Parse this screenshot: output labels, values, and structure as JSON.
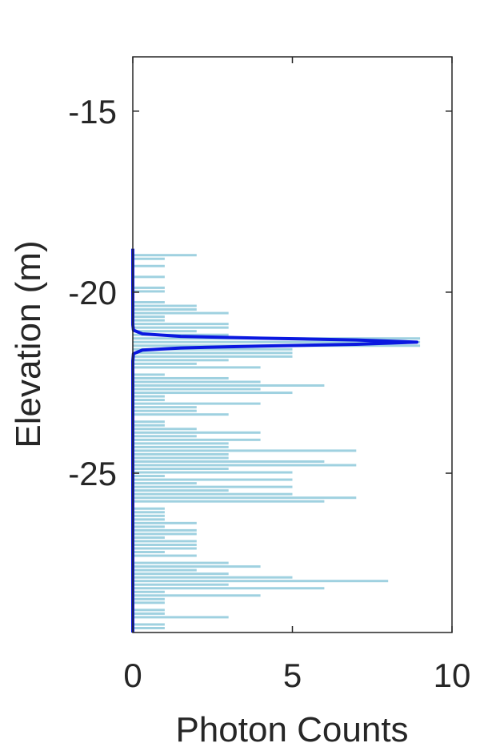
{
  "chart_data": {
    "type": "bar",
    "orientation": "horizontal",
    "title": "",
    "xlabel": "Photon Counts",
    "ylabel": "Elevation (m)",
    "xlim": [
      0,
      10
    ],
    "ylim": [
      -29.4,
      -13.5
    ],
    "xticks": [
      0,
      5,
      10
    ],
    "xtick_labels": [
      "0",
      "5",
      "10"
    ],
    "yticks": [
      -15,
      -20,
      -25
    ],
    "ytick_labels": [
      "-15",
      "-20",
      "-25"
    ],
    "grid": false,
    "legend": "none",
    "colors": {
      "bars": "#9fd1e0",
      "fit_line": "#0a18e0",
      "axes": "#262626"
    },
    "series": [
      {
        "kind": "histogram",
        "bin_height": 0.11,
        "bars": [
          [
            -19.0,
            2
          ],
          [
            -19.1,
            1
          ],
          [
            -19.3,
            1
          ],
          [
            -19.6,
            1
          ],
          [
            -19.9,
            1
          ],
          [
            -20.0,
            1
          ],
          [
            -20.3,
            1
          ],
          [
            -20.4,
            2
          ],
          [
            -20.5,
            2
          ],
          [
            -20.6,
            3
          ],
          [
            -20.7,
            1
          ],
          [
            -20.8,
            1
          ],
          [
            -20.9,
            3
          ],
          [
            -21.0,
            3
          ],
          [
            -21.1,
            2
          ],
          [
            -21.2,
            3
          ],
          [
            -21.3,
            9
          ],
          [
            -21.4,
            9
          ],
          [
            -21.5,
            9
          ],
          [
            -21.6,
            5
          ],
          [
            -21.7,
            5
          ],
          [
            -21.8,
            5
          ],
          [
            -21.9,
            3
          ],
          [
            -22.0,
            2
          ],
          [
            -22.1,
            4
          ],
          [
            -22.3,
            1
          ],
          [
            -22.4,
            3
          ],
          [
            -22.5,
            4
          ],
          [
            -22.6,
            6
          ],
          [
            -22.7,
            4
          ],
          [
            -22.8,
            5
          ],
          [
            -22.9,
            1
          ],
          [
            -23.0,
            1
          ],
          [
            -23.1,
            4
          ],
          [
            -23.2,
            2
          ],
          [
            -23.3,
            2
          ],
          [
            -23.4,
            3
          ],
          [
            -23.6,
            1
          ],
          [
            -23.7,
            1
          ],
          [
            -23.8,
            2
          ],
          [
            -23.9,
            4
          ],
          [
            -24.0,
            2
          ],
          [
            -24.1,
            4
          ],
          [
            -24.2,
            3
          ],
          [
            -24.3,
            3
          ],
          [
            -24.4,
            7
          ],
          [
            -24.5,
            3
          ],
          [
            -24.6,
            3
          ],
          [
            -24.7,
            6
          ],
          [
            -24.8,
            7
          ],
          [
            -24.9,
            3
          ],
          [
            -25.0,
            5
          ],
          [
            -25.1,
            1
          ],
          [
            -25.2,
            5
          ],
          [
            -25.3,
            2
          ],
          [
            -25.4,
            5
          ],
          [
            -25.5,
            3
          ],
          [
            -25.6,
            5
          ],
          [
            -25.7,
            7
          ],
          [
            -25.8,
            6
          ],
          [
            -26.0,
            1
          ],
          [
            -26.1,
            1
          ],
          [
            -26.2,
            1
          ],
          [
            -26.3,
            1
          ],
          [
            -26.4,
            2
          ],
          [
            -26.5,
            1
          ],
          [
            -26.6,
            2
          ],
          [
            -26.7,
            2
          ],
          [
            -26.8,
            1
          ],
          [
            -26.9,
            2
          ],
          [
            -27.0,
            2
          ],
          [
            -27.1,
            2
          ],
          [
            -27.2,
            1
          ],
          [
            -27.3,
            2
          ],
          [
            -27.5,
            3
          ],
          [
            -27.6,
            4
          ],
          [
            -27.7,
            2
          ],
          [
            -27.8,
            3
          ],
          [
            -27.9,
            5
          ],
          [
            -28.0,
            8
          ],
          [
            -28.1,
            3
          ],
          [
            -28.2,
            6
          ],
          [
            -28.3,
            1
          ],
          [
            -28.4,
            4
          ],
          [
            -28.5,
            1
          ],
          [
            -28.6,
            1
          ],
          [
            -28.8,
            1
          ],
          [
            -28.9,
            1
          ],
          [
            -29.0,
            3
          ],
          [
            -29.2,
            1
          ],
          [
            -29.3,
            1
          ]
        ]
      },
      {
        "kind": "line",
        "points": [
          [
            0,
            -18.8
          ],
          [
            0,
            -19.5
          ],
          [
            0,
            -20.5
          ],
          [
            0.0,
            -20.9
          ],
          [
            0.02,
            -21.05
          ],
          [
            0.3,
            -21.15
          ],
          [
            1.5,
            -21.22
          ],
          [
            4.0,
            -21.27
          ],
          [
            7.0,
            -21.32
          ],
          [
            8.9,
            -21.38
          ],
          [
            7.0,
            -21.44
          ],
          [
            4.0,
            -21.49
          ],
          [
            1.5,
            -21.54
          ],
          [
            0.3,
            -21.6
          ],
          [
            0.02,
            -21.7
          ],
          [
            0.0,
            -21.9
          ],
          [
            0,
            -23
          ],
          [
            0,
            -26
          ],
          [
            0,
            -29.4
          ]
        ]
      }
    ]
  }
}
